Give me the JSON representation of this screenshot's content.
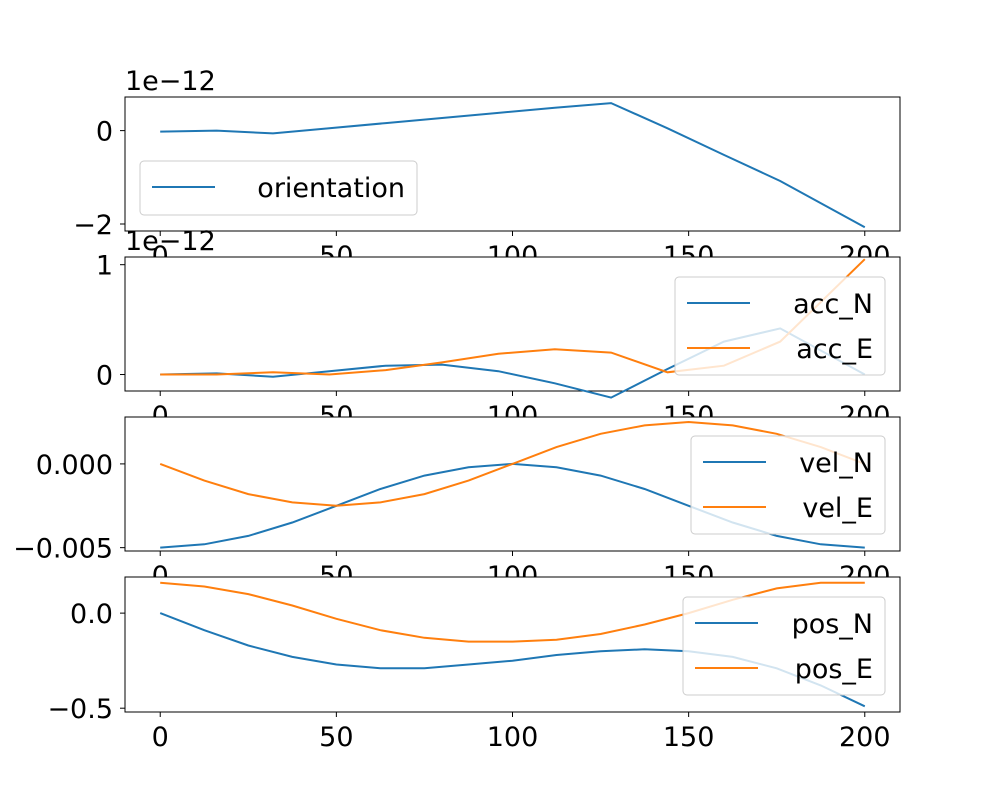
{
  "chart_data": [
    {
      "type": "line",
      "offset_text": "1e−12",
      "x": [
        0,
        16,
        32,
        48,
        64,
        80,
        96,
        112,
        128,
        144,
        160,
        176,
        200
      ],
      "xlim": [
        -10,
        210
      ],
      "ylim": [
        -2.15,
        0.72
      ],
      "x_ticks": [
        0,
        50,
        100,
        150,
        200
      ],
      "x_tick_labels": [
        "0",
        "50",
        "100",
        "150",
        "200"
      ],
      "y_ticks": [
        0,
        -2
      ],
      "y_tick_labels": [
        "0",
        "−2"
      ],
      "legend_position": "lower left",
      "series": [
        {
          "name": "orientation",
          "color": "#1f77b4",
          "values": [
            -0.02,
            0.0,
            -0.06,
            0.05,
            0.16,
            0.27,
            0.38,
            0.49,
            0.59,
            0.05,
            -0.52,
            -1.08,
            -2.07
          ]
        }
      ]
    },
    {
      "type": "line",
      "offset_text": "1e−12",
      "x": [
        0,
        16,
        32,
        48,
        64,
        80,
        96,
        112,
        128,
        144,
        160,
        176,
        200
      ],
      "xlim": [
        -10,
        210
      ],
      "ylim": [
        -0.15,
        1.07
      ],
      "x_ticks": [
        0,
        50,
        100,
        150,
        200
      ],
      "x_tick_labels": [
        "0",
        "50",
        "100",
        "150",
        "200"
      ],
      "y_ticks": [
        0,
        1
      ],
      "y_tick_labels": [
        "0",
        "1"
      ],
      "legend_position": "upper right",
      "series": [
        {
          "name": "acc_N",
          "color": "#1f77b4",
          "values": [
            0.0,
            0.01,
            -0.02,
            0.03,
            0.08,
            0.09,
            0.03,
            -0.08,
            -0.21,
            0.05,
            0.3,
            0.42,
            0.0
          ]
        },
        {
          "name": "acc_E",
          "color": "#ff7f0e",
          "values": [
            0.0,
            0.0,
            0.02,
            0.0,
            0.04,
            0.11,
            0.19,
            0.23,
            0.2,
            0.02,
            0.08,
            0.3,
            1.05
          ]
        }
      ]
    },
    {
      "type": "line",
      "x": [
        0,
        12.5,
        25,
        37.5,
        50,
        62.5,
        75,
        87.5,
        100,
        112.5,
        125,
        137.5,
        150,
        162.5,
        175,
        187.5,
        200
      ],
      "xlim": [
        -10,
        210
      ],
      "ylim": [
        -0.0052,
        0.0028
      ],
      "x_ticks": [
        0,
        50,
        100,
        150,
        200
      ],
      "x_tick_labels": [
        "0",
        "50",
        "100",
        "150",
        "200"
      ],
      "y_ticks": [
        0,
        -0.005
      ],
      "y_tick_labels": [
        "0.000",
        "−0.005"
      ],
      "legend_position": "upper right",
      "series": [
        {
          "name": "vel_N",
          "color": "#1f77b4",
          "values": [
            -0.005,
            -0.0048,
            -0.0043,
            -0.0035,
            -0.0025,
            -0.0015,
            -0.0007,
            -0.0002,
            0.0,
            -0.0002,
            -0.0007,
            -0.0015,
            -0.0025,
            -0.0035,
            -0.0043,
            -0.0048,
            -0.005
          ]
        },
        {
          "name": "vel_E",
          "color": "#ff7f0e",
          "values": [
            0.0,
            -0.001,
            -0.0018,
            -0.0023,
            -0.0025,
            -0.0023,
            -0.0018,
            -0.001,
            0.0,
            0.001,
            0.0018,
            0.0023,
            0.0025,
            0.0023,
            0.0018,
            0.001,
            0.0
          ]
        }
      ]
    },
    {
      "type": "line",
      "x": [
        0,
        12.5,
        25,
        37.5,
        50,
        62.5,
        75,
        87.5,
        100,
        112.5,
        125,
        137.5,
        150,
        162.5,
        175,
        187.5,
        200
      ],
      "xlim": [
        -10,
        210
      ],
      "ylim": [
        -0.52,
        0.19
      ],
      "x_ticks": [
        0,
        50,
        100,
        150,
        200
      ],
      "x_tick_labels": [
        "0",
        "50",
        "100",
        "150",
        "200"
      ],
      "y_ticks": [
        0,
        -0.5
      ],
      "y_tick_labels": [
        "0.0",
        "−0.5"
      ],
      "legend_position": "upper right",
      "series": [
        {
          "name": "pos_N",
          "color": "#1f77b4",
          "values": [
            0.0,
            -0.09,
            -0.17,
            -0.23,
            -0.27,
            -0.29,
            -0.29,
            -0.27,
            -0.25,
            -0.22,
            -0.2,
            -0.19,
            -0.2,
            -0.23,
            -0.29,
            -0.38,
            -0.49
          ]
        },
        {
          "name": "pos_E",
          "color": "#ff7f0e",
          "values": [
            0.16,
            0.14,
            0.1,
            0.04,
            -0.03,
            -0.09,
            -0.13,
            -0.15,
            -0.15,
            -0.14,
            -0.11,
            -0.06,
            0.0,
            0.07,
            0.13,
            0.16,
            0.16
          ]
        }
      ]
    }
  ]
}
